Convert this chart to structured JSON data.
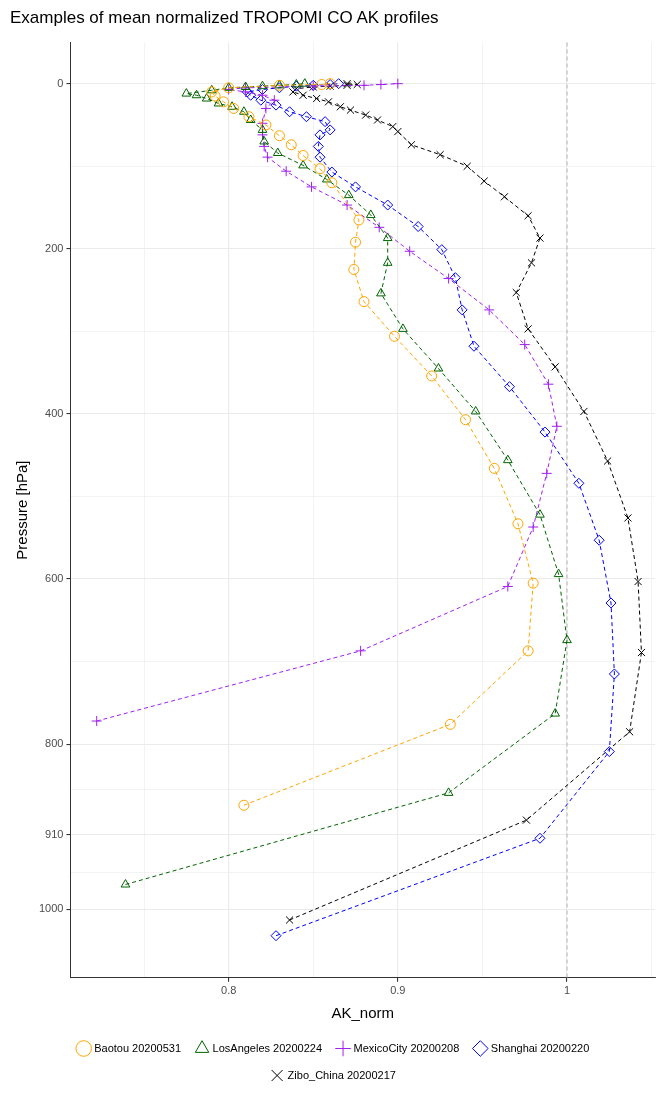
{
  "chart_data": {
    "type": "line",
    "title": "Examples of mean normalized TROPOMI CO AK profiles",
    "xlabel": "AK_norm",
    "ylabel": "Pressure [hPa]",
    "xlim": [
      0.7065,
      1.052
    ],
    "xticks": [
      {
        "value": 0.75,
        "label": null
      },
      0.8,
      {
        "value": 0.85,
        "label": null
      },
      0.9,
      {
        "value": 0.95,
        "label": null
      },
      1.0,
      {
        "value": 1.05,
        "label": null
      }
    ],
    "ylim": [
      1083,
      -50
    ],
    "yticks": [
      0,
      {
        "value": 100,
        "label": null
      },
      200,
      {
        "value": 300,
        "label": null
      },
      400,
      {
        "value": 500,
        "label": null
      },
      600,
      {
        "value": 700,
        "label": null
      },
      800,
      {
        "value": 855,
        "label": null
      },
      910,
      {
        "value": 955,
        "label": null
      },
      1000
    ],
    "grid": true,
    "legend": "bottom",
    "line_style": "dashed",
    "ref_lines": [
      {
        "axis": "x",
        "value": 1.0,
        "color": "#bebebe",
        "line_style": "dashed"
      }
    ],
    "series": [
      {
        "name": "Baotou 20200531",
        "color": "#ffa500",
        "marker": "circle",
        "x": [
          0.809,
          0.931,
          0.977,
          0.98,
          0.971,
          0.957,
          0.94,
          0.92,
          0.898,
          0.88,
          0.874,
          0.875,
          0.877,
          0.861,
          0.854,
          0.844,
          0.837,
          0.83,
          0.822,
          0.812,
          0.803,
          0.797,
          0.792,
          0.79,
          0.8,
          0.83,
          0.855,
          0.86
        ],
        "values": [
          874,
          776,
          687,
          605,
          533,
          466,
          407,
          354,
          306,
          264,
          225,
          192,
          165,
          120,
          103,
          87,
          74,
          63,
          50,
          40,
          30,
          22,
          15,
          10,
          5,
          2,
          1,
          0
        ]
      },
      {
        "name": "LosAngeles 20200224",
        "color": "#006400",
        "marker": "triangle",
        "x": [
          0.739,
          0.93,
          0.993,
          1.0,
          0.995,
          0.984,
          0.965,
          0.946,
          0.924,
          0.903,
          0.89,
          0.894,
          0.894,
          0.884,
          0.871,
          0.858,
          0.844,
          0.829,
          0.821,
          0.82,
          0.813,
          0.809,
          0.802,
          0.794,
          0.787,
          0.781,
          0.775,
          0.79,
          0.8,
          0.81,
          0.82,
          0.83,
          0.84,
          0.845
        ],
        "values": [
          970,
          859,
          763,
          674,
          594,
          522,
          456,
          397,
          345,
          297,
          254,
          217,
          187,
          159,
          135,
          116,
          99,
          84,
          70,
          56,
          44,
          34,
          28,
          24,
          18,
          14,
          12,
          8,
          5,
          4,
          3,
          2,
          1,
          0
        ]
      },
      {
        "name": "MexicoCity 20200208",
        "color": "#a020f0",
        "marker": "cross",
        "x": [
          0.722,
          0.878,
          0.965,
          0.98,
          0.988,
          0.994,
          0.989,
          0.975,
          0.954,
          0.93,
          0.907,
          0.889,
          0.87,
          0.849,
          0.834,
          0.823,
          0.821,
          0.82,
          0.82,
          0.822,
          0.827,
          0.82,
          0.81,
          0.8,
          0.81,
          0.85,
          0.88,
          0.89,
          0.9
        ],
        "values": [
          772,
          687,
          609,
          537,
          472,
          415,
          364,
          316,
          274,
          236,
          203,
          174,
          147,
          125,
          106,
          89,
          76,
          62,
          48,
          30,
          20,
          14,
          10,
          7,
          5,
          3,
          2,
          1,
          0
        ]
      },
      {
        "name": "Shanghai 20200220",
        "color": "#0000ff",
        "marker": "diamond",
        "x": [
          0.828,
          0.984,
          1.025,
          1.028,
          1.026,
          1.019,
          1.007,
          0.987,
          0.966,
          0.945,
          0.938,
          0.934,
          0.926,
          0.912,
          0.894,
          0.875,
          0.861,
          0.854,
          0.853,
          0.854,
          0.86,
          0.857,
          0.846,
          0.836,
          0.828,
          0.819,
          0.813,
          0.811,
          0.82,
          0.83,
          0.84,
          0.85,
          0.86,
          0.865
        ],
        "values": [
          1032,
          914,
          809,
          715,
          629,
          553,
          484,
          422,
          367,
          318,
          274,
          235,
          201,
          173,
          147,
          125,
          107,
          89,
          76,
          62,
          56,
          46,
          40,
          34,
          26,
          20,
          14,
          10,
          7,
          5,
          3,
          2,
          1,
          0
        ]
      },
      {
        "name": "Zibo_China 20200217",
        "color": "#000000",
        "marker": "cross",
        "x": [
          0.836,
          0.976,
          1.037,
          1.044,
          1.042,
          1.036,
          1.024,
          1.01,
          0.993,
          0.977,
          0.97,
          0.979,
          0.984,
          0.977,
          0.963,
          0.951,
          0.941,
          0.925,
          0.908,
          0.9,
          0.897,
          0.888,
          0.881,
          0.872,
          0.866,
          0.859,
          0.852,
          0.844,
          0.838,
          0.84,
          0.85,
          0.86,
          0.87,
          0.876,
          0.87
        ],
        "values": [
          1013,
          892,
          785,
          689,
          603,
          526,
          457,
          397,
          343,
          297,
          253,
          217,
          187,
          160,
          137,
          118,
          100,
          86,
          74,
          58,
          52,
          44,
          38,
          32,
          28,
          22,
          18,
          14,
          10,
          6,
          4,
          3,
          2,
          1,
          0
        ]
      }
    ]
  }
}
